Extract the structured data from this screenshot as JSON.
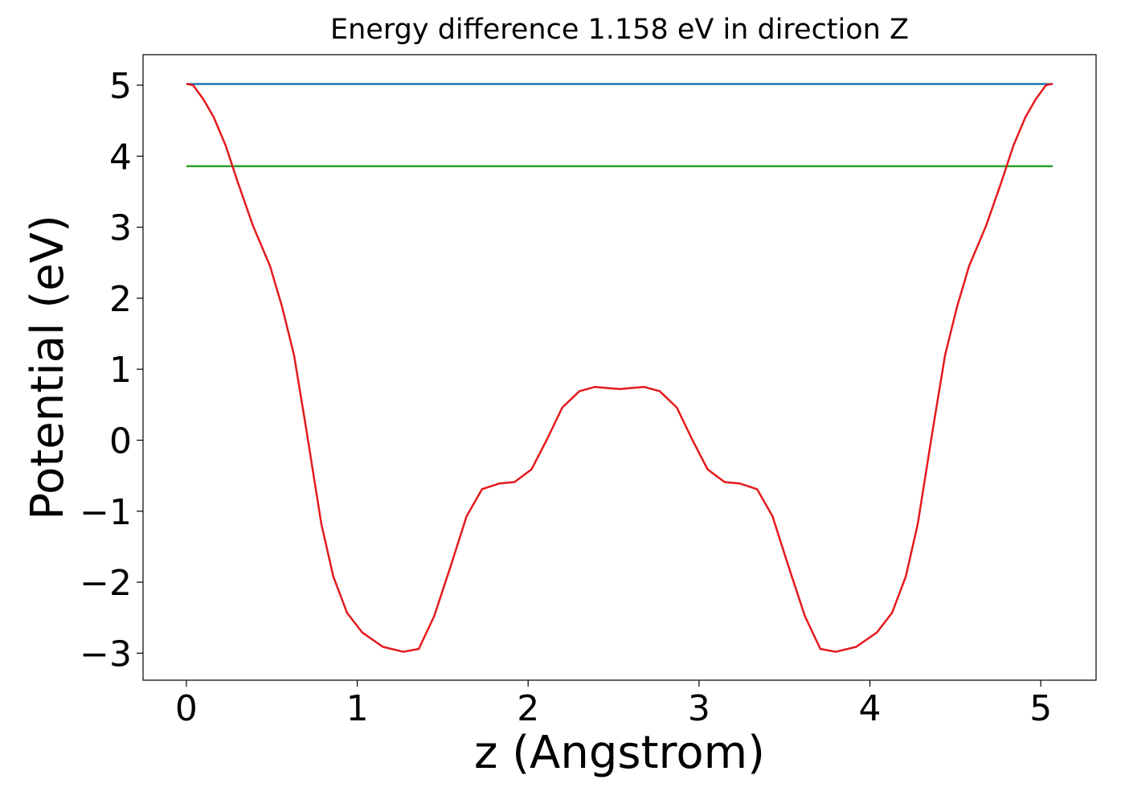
{
  "chart_data": {
    "type": "line",
    "title": "Energy difference 1.158 eV in direction Z",
    "xlabel": "z (Angstrom)",
    "ylabel": "Potential (eV)",
    "xlim": [
      -0.2535,
      5.3235
    ],
    "ylim": [
      -3.38,
      5.43
    ],
    "xticks": [
      0,
      1,
      2,
      3,
      4,
      5
    ],
    "yticks": [
      {
        "value": -3,
        "label": "−3"
      },
      {
        "value": -2,
        "label": "−2"
      },
      {
        "value": -1,
        "label": "−1"
      },
      0,
      1,
      2,
      3,
      4,
      5
    ],
    "series": [
      {
        "color": "#1f77b4",
        "x": [
          0,
          5.07
        ],
        "values": [
          5.017,
          5.017
        ]
      },
      {
        "color": "#2ca02c",
        "x": [
          0,
          5.07
        ],
        "values": [
          3.859,
          3.859
        ]
      },
      {
        "color": "#e41a1c",
        "x": [
          0,
          0.04,
          0.1,
          0.16,
          0.23,
          0.3,
          0.39,
          0.49,
          0.56,
          0.63,
          0.7,
          0.79,
          0.86,
          0.94,
          1.03,
          1.15,
          1.27,
          1.36,
          1.45,
          1.55,
          1.64,
          1.73,
          1.83,
          1.92,
          2.02,
          2.11,
          2.2,
          2.3,
          2.39,
          2.535,
          2.68,
          2.77,
          2.87,
          2.96,
          3.05,
          3.15,
          3.24,
          3.34,
          3.43,
          3.52,
          3.62,
          3.71,
          3.8,
          3.92,
          4.04,
          4.13,
          4.21,
          4.28,
          4.37,
          4.44,
          4.51,
          4.58,
          4.68,
          4.77,
          4.84,
          4.91,
          4.97,
          5.03,
          5.07
        ],
        "values": [
          5.02,
          5.0,
          4.8,
          4.55,
          4.15,
          3.64,
          3.02,
          2.45,
          1.88,
          1.2,
          0.18,
          -1.18,
          -1.92,
          -2.43,
          -2.71,
          -2.91,
          -2.98,
          -2.94,
          -2.48,
          -1.75,
          -1.07,
          -0.69,
          -0.61,
          -0.59,
          -0.41,
          0.01,
          0.46,
          0.69,
          0.75,
          0.72,
          0.75,
          0.69,
          0.46,
          0.01,
          -0.41,
          -0.59,
          -0.61,
          -0.69,
          -1.07,
          -1.75,
          -2.48,
          -2.94,
          -2.98,
          -2.91,
          -2.71,
          -2.43,
          -1.92,
          -1.18,
          0.18,
          1.2,
          1.88,
          2.45,
          3.02,
          3.64,
          4.15,
          4.55,
          4.8,
          5.0,
          5.02
        ]
      }
    ]
  }
}
